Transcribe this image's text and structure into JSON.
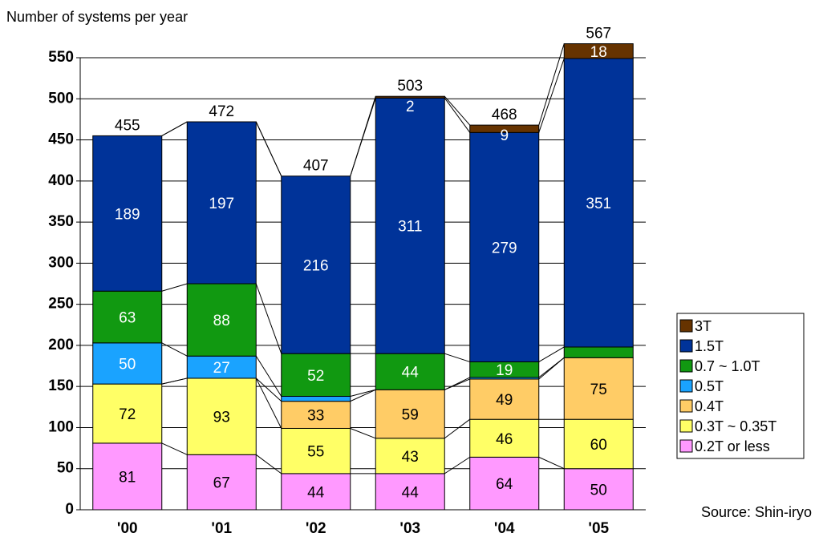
{
  "chart_data": {
    "type": "stacked_bar",
    "y_axis_label": "Number of systems per year",
    "source": "Source: Shin-iryo",
    "categories": [
      "'00",
      "'01",
      "'02",
      "'03",
      "'04",
      "'05"
    ],
    "totals": [
      455,
      472,
      407,
      503,
      468,
      567
    ],
    "ylim": [
      0,
      550
    ],
    "yticks": [
      0,
      50,
      100,
      150,
      200,
      250,
      300,
      350,
      400,
      450,
      500,
      550
    ],
    "grid": true,
    "legend": "right",
    "series": [
      {
        "name": "0.2T or less",
        "color": "#ff99ff",
        "label_color": "#000000",
        "values": [
          81,
          67,
          44,
          44,
          64,
          50
        ]
      },
      {
        "name": "0.3T ~ 0.35T",
        "color": "#ffff66",
        "label_color": "#000000",
        "values": [
          72,
          93,
          55,
          43,
          46,
          60
        ]
      },
      {
        "name": "0.4T",
        "color": "#ffcc66",
        "label_color": "#000000",
        "values": [
          null,
          null,
          33,
          59,
          49,
          75
        ]
      },
      {
        "name": "0.5T",
        "color": "#1aa3ff",
        "label_color": "#ffffff",
        "values": [
          50,
          27,
          6,
          null,
          2,
          null
        ]
      },
      {
        "name": "0.7 ~ 1.0T",
        "color": "#119911",
        "label_color": "#ffffff",
        "values": [
          63,
          88,
          52,
          44,
          19,
          13
        ]
      },
      {
        "name": "1.5T",
        "color": "#003399",
        "label_color": "#ffffff",
        "values": [
          189,
          197,
          216,
          311,
          279,
          351
        ]
      },
      {
        "name": "3T",
        "color": "#663300",
        "label_color": "#ffffff",
        "values": [
          null,
          null,
          null,
          2,
          9,
          18
        ]
      }
    ]
  }
}
